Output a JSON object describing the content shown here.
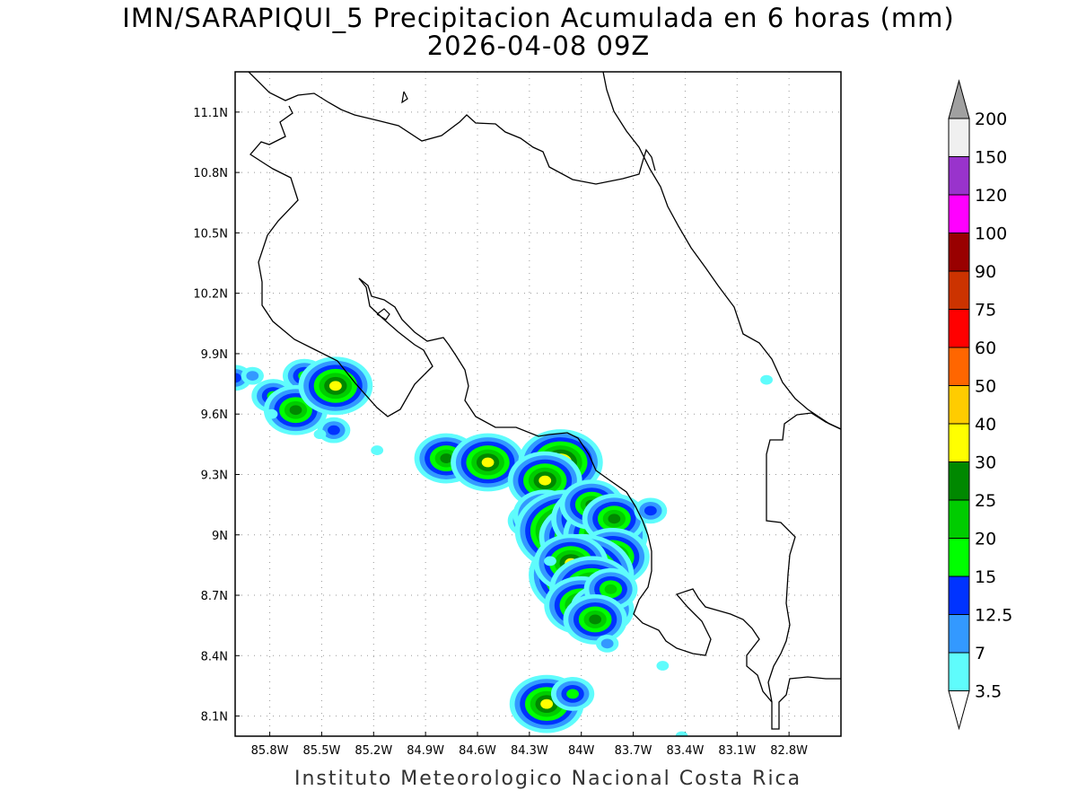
{
  "title": {
    "line1": "IMN/SARAPIQUI_5 Precipitacion Acumulada en 6 horas (mm)",
    "line2": "2026-04-08 09Z"
  },
  "footer": "Instituto Meteorologico Nacional Costa Rica",
  "axes": {
    "lat_labels": [
      "11.1N",
      "10.8N",
      "10.5N",
      "10.2N",
      "9.9N",
      "9.6N",
      "9.3N",
      "9N",
      "8.7N",
      "8.4N",
      "8.1N"
    ],
    "lat_values": [
      11.1,
      10.8,
      10.5,
      10.2,
      9.9,
      9.6,
      9.3,
      9.0,
      8.7,
      8.4,
      8.1
    ],
    "lon_labels": [
      "85.8W",
      "85.5W",
      "85.2W",
      "84.9W",
      "84.6W",
      "84.3W",
      "84W",
      "83.7W",
      "83.4W",
      "83.1W",
      "82.8W"
    ],
    "lon_values": [
      -85.8,
      -85.5,
      -85.2,
      -84.9,
      -84.6,
      -84.3,
      -84.0,
      -83.7,
      -83.4,
      -83.1,
      -82.8
    ],
    "lon_range": [
      -86.0,
      -82.5
    ],
    "lat_range": [
      8.0,
      11.3
    ]
  },
  "colorbar": {
    "labels": [
      "3.5",
      "7",
      "12.5",
      "15",
      "20",
      "25",
      "30",
      "40",
      "50",
      "60",
      "75",
      "90",
      "100",
      "120",
      "150",
      "200"
    ],
    "colors": [
      "#5ffcfc",
      "#3399ff",
      "#0033ff",
      "#00ff00",
      "#00cc00",
      "#008800",
      "#ffff00",
      "#ffcc00",
      "#ff6600",
      "#ff0000",
      "#cc3300",
      "#990000",
      "#ff00ff",
      "#9933cc",
      "#f0f0f0",
      "#a0a0a0"
    ],
    "under_color": "#ffffff",
    "over_color": "#a0a0a0"
  },
  "rain_cells": [
    {
      "lon": -86.0,
      "lat": 9.78,
      "level": 2
    },
    {
      "lon": -85.9,
      "lat": 9.79,
      "level": 1
    },
    {
      "lon": -85.78,
      "lat": 9.69,
      "level": 3
    },
    {
      "lon": -85.6,
      "lat": 9.79,
      "level": 3
    },
    {
      "lon": -85.65,
      "lat": 9.62,
      "level": 5
    },
    {
      "lon": -85.79,
      "lat": 9.6,
      "level": 0
    },
    {
      "lon": -85.42,
      "lat": 9.74,
      "level": 6
    },
    {
      "lon": -85.43,
      "lat": 9.52,
      "level": 2
    },
    {
      "lon": -85.51,
      "lat": 9.5,
      "level": 0
    },
    {
      "lon": -85.18,
      "lat": 9.42,
      "level": 0
    },
    {
      "lon": -84.78,
      "lat": 9.38,
      "level": 5
    },
    {
      "lon": -84.54,
      "lat": 9.36,
      "level": 6
    },
    {
      "lon": -84.25,
      "lat": 9.45,
      "level": 0
    },
    {
      "lon": -84.12,
      "lat": 9.36,
      "level": 7
    },
    {
      "lon": -84.21,
      "lat": 9.27,
      "level": 6
    },
    {
      "lon": -84.3,
      "lat": 9.07,
      "level": 3
    },
    {
      "lon": -84.21,
      "lat": 9.1,
      "level": 5
    },
    {
      "lon": -84.08,
      "lat": 9.02,
      "level": 9
    },
    {
      "lon": -84.0,
      "lat": 8.99,
      "level": 7
    },
    {
      "lon": -83.93,
      "lat": 9.08,
      "level": 7
    },
    {
      "lon": -83.86,
      "lat": 9.0,
      "level": 7
    },
    {
      "lon": -83.94,
      "lat": 9.15,
      "level": 5
    },
    {
      "lon": -83.81,
      "lat": 9.08,
      "level": 5
    },
    {
      "lon": -83.82,
      "lat": 8.89,
      "level": 6
    },
    {
      "lon": -84.0,
      "lat": 8.8,
      "level": 9
    },
    {
      "lon": -84.06,
      "lat": 8.86,
      "level": 6
    },
    {
      "lon": -83.94,
      "lat": 8.73,
      "level": 7
    },
    {
      "lon": -84.0,
      "lat": 8.65,
      "level": 6
    },
    {
      "lon": -83.88,
      "lat": 8.63,
      "level": 5
    },
    {
      "lon": -83.83,
      "lat": 8.73,
      "level": 4
    },
    {
      "lon": -83.92,
      "lat": 8.58,
      "level": 5
    },
    {
      "lon": -83.6,
      "lat": 9.12,
      "level": 2
    },
    {
      "lon": -84.18,
      "lat": 8.87,
      "level": 0
    },
    {
      "lon": -83.85,
      "lat": 8.46,
      "level": 1
    },
    {
      "lon": -83.53,
      "lat": 8.35,
      "level": 0
    },
    {
      "lon": -84.2,
      "lat": 8.16,
      "level": 6
    },
    {
      "lon": -84.05,
      "lat": 8.21,
      "level": 3
    },
    {
      "lon": -82.93,
      "lat": 9.77,
      "level": 0
    },
    {
      "lon": -83.42,
      "lat": 8.0,
      "level": 0
    }
  ]
}
